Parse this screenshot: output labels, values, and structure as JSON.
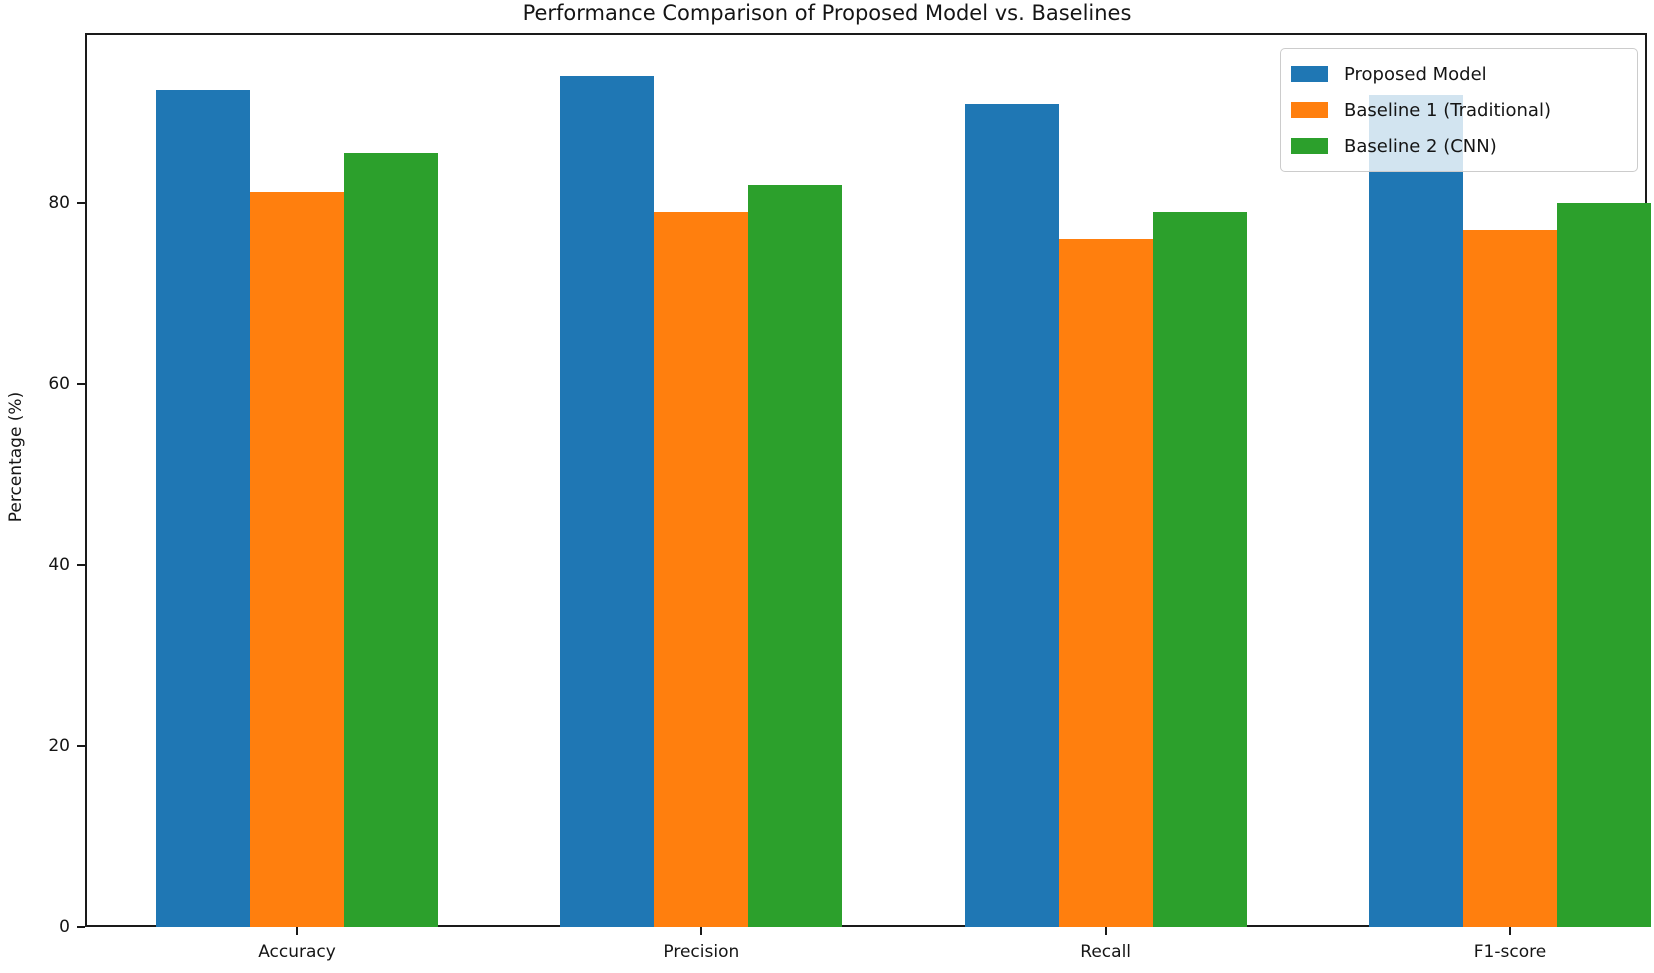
{
  "chart_data": {
    "type": "bar",
    "title": "Performance Comparison of Proposed Model vs. Baselines",
    "xlabel": "",
    "ylabel": "Percentage (%)",
    "categories": [
      "Accuracy",
      "Precision",
      "Recall",
      "F1-score"
    ],
    "series": [
      {
        "name": "Proposed Model",
        "color": "#1f77b4",
        "values": [
          92.5,
          94.0,
          91.0,
          92.0
        ]
      },
      {
        "name": "Baseline 1 (Traditional)",
        "color": "#ff7f0e",
        "values": [
          81.2,
          79.0,
          76.0,
          77.0
        ]
      },
      {
        "name": "Baseline 2 (CNN)",
        "color": "#2ca02c",
        "values": [
          85.5,
          82.0,
          79.0,
          80.0
        ]
      }
    ],
    "yticks": [
      0,
      20,
      40,
      60,
      80
    ],
    "ylim": [
      0,
      98.8
    ],
    "grid": false,
    "legend_position": "upper right",
    "axis_color": "#1a1a1a"
  }
}
